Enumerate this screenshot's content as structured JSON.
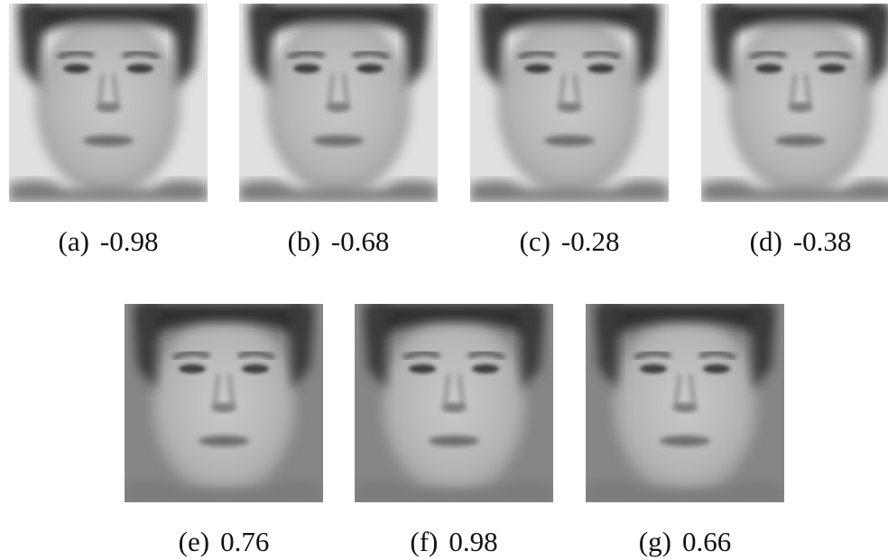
{
  "figures": [
    {
      "label": "(a)",
      "value": "-0.98",
      "bg_light": true
    },
    {
      "label": "(b)",
      "value": "-0.68",
      "bg_light": true
    },
    {
      "label": "(c)",
      "value": "-0.28",
      "bg_light": true
    },
    {
      "label": "(d)",
      "value": "-0.38",
      "bg_light": true
    },
    {
      "label": "(e)",
      "value": "0.76",
      "bg_light": false
    },
    {
      "label": "(f)",
      "value": "0.98",
      "bg_light": false
    },
    {
      "label": "(g)",
      "value": "0.66",
      "bg_light": false
    }
  ]
}
